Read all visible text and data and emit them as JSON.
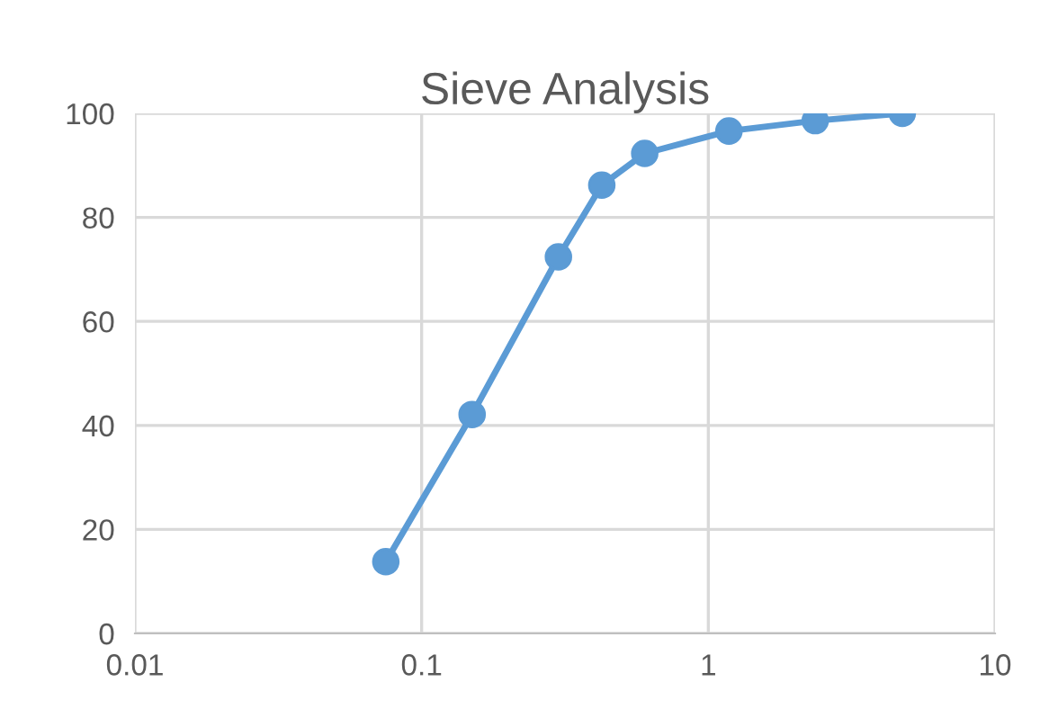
{
  "chart_data": {
    "type": "line",
    "title": "Sieve Analysis",
    "x": [
      0.075,
      0.15,
      0.3,
      0.425,
      0.6,
      1.18,
      2.36,
      4.75
    ],
    "series": [
      {
        "color": "#5b9bd5",
        "values": [
          13.8,
          42.1,
          72.4,
          86.2,
          92.3,
          96.6,
          98.6,
          100
        ]
      }
    ],
    "log": "x",
    "xlim": [
      0.01,
      10
    ],
    "xticks": [
      0.01,
      0.1,
      1,
      10
    ],
    "ylim": [
      0,
      100
    ],
    "yticks": [
      0,
      20,
      40,
      60,
      80,
      100
    ],
    "grid": true,
    "marker": "circle",
    "line_style": "solid"
  }
}
